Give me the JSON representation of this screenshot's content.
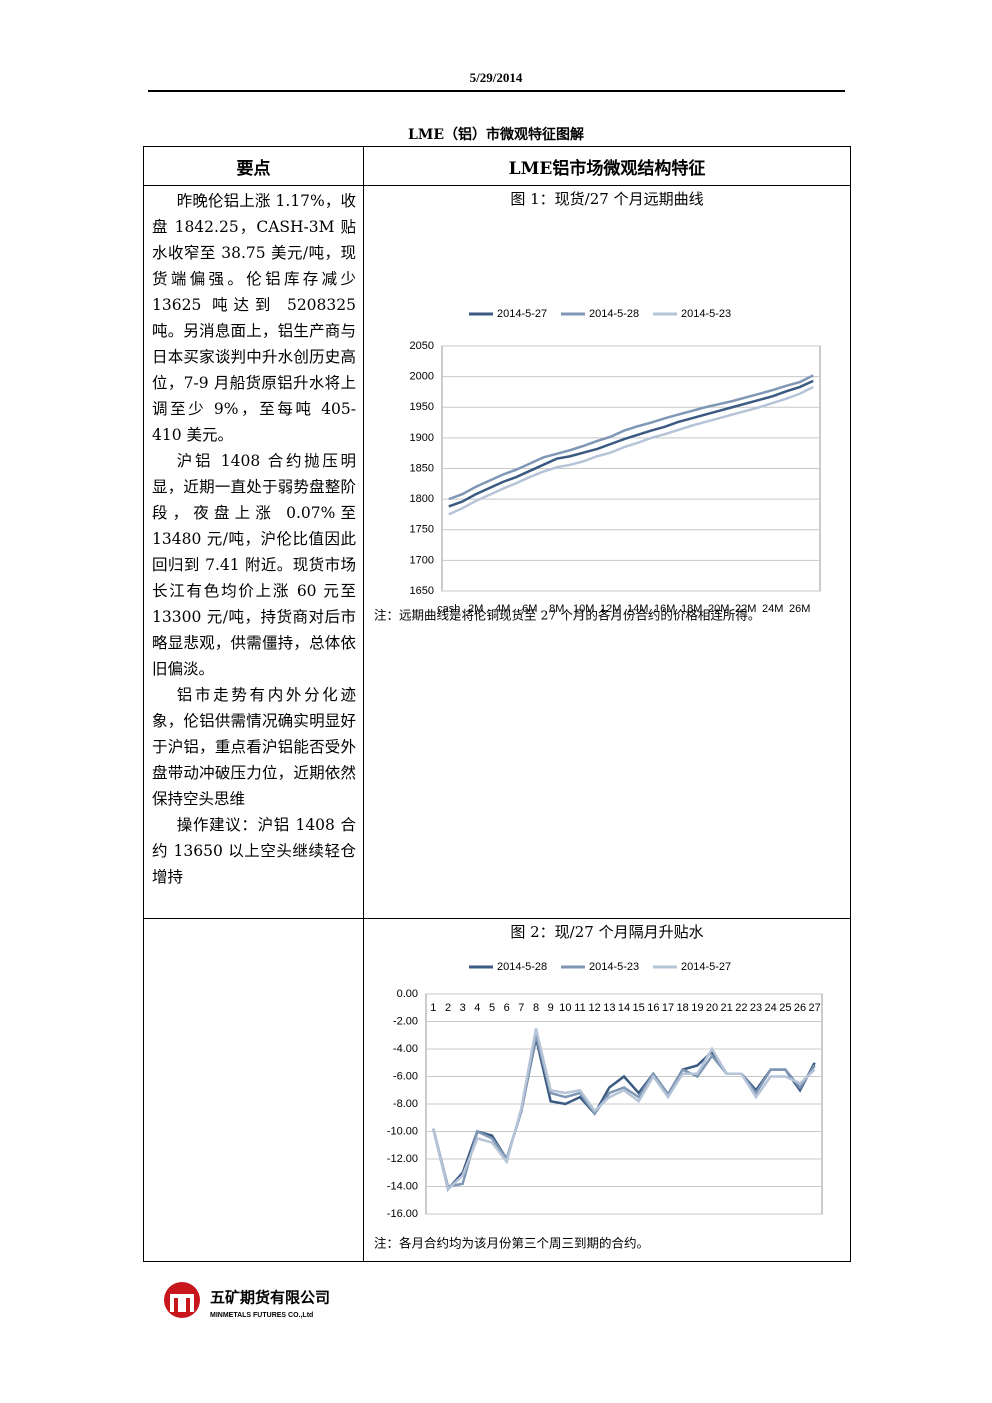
{
  "header": {
    "date": "5/29/2014"
  },
  "title": "LME（铝）市微观特征图解",
  "table": {
    "headers": [
      "要点",
      "LME铝市场微观结构特征"
    ],
    "paragraphs": [
      "昨晚伦铝上涨 1.17%，收盘 1842.25，CASH-3M 贴水收窄至 38.75 美元/吨，现货端偏强。伦铝库存减少 13625 吨达到 5208325 吨。另消息面上，铝生产商与日本买家谈判中升水创历史高位，7-9 月船货原铝升水将上调至少 9%，至每吨 405-410 美元。",
      "沪铝 1408 合约抛压明显，近期一直处于弱势盘整阶段，夜盘上涨 0.07%至 13480 元/吨，沪伦比值因此回归到 7.41 附近。现货市场长江有色均价上涨 60 元至 13300 元/吨，持货商对后市略显悲观，供需僵持，总体依旧偏淡。",
      "铝市走势有内外分化迹象，伦铝供需情况确实明显好于沪铝，重点看沪铝能否受外盘带动冲破压力位，近期依然保持空头思维",
      "操作建议：沪铝 1408 合约 13650 以上空头继续轻仓增持"
    ]
  },
  "chart_data": [
    {
      "type": "line",
      "title": "图 1：现货/27 个月远期曲线",
      "note": "注：远期曲线是将伦铜现货至 27 个月的各月份合约的价格相连所得。",
      "categories": [
        "cash",
        null,
        "2M",
        null,
        "4M",
        null,
        "6M",
        null,
        "8M",
        null,
        "10M",
        null,
        "12M",
        null,
        "14M",
        null,
        "16M",
        null,
        "18M",
        null,
        "20M",
        null,
        "22M",
        null,
        "24M",
        null,
        "26M",
        null
      ],
      "series": [
        {
          "name": "2014-5-27",
          "color": "#3b5a82",
          "values": [
            1788,
            1796,
            1808,
            1818,
            1828,
            1836,
            1846,
            1856,
            1866,
            1870,
            1876,
            1882,
            1890,
            1898,
            1905,
            1912,
            1918,
            1926,
            1932,
            1938,
            1944,
            1950,
            1956,
            1962,
            1968,
            1976,
            1983,
            1993
          ]
        },
        {
          "name": "2014-5-28",
          "color": "#7f97b5",
          "values": [
            1800,
            1808,
            1820,
            1830,
            1840,
            1848,
            1858,
            1868,
            1874,
            1880,
            1887,
            1895,
            1902,
            1912,
            1919,
            1925,
            1932,
            1938,
            1944,
            1950,
            1955,
            1960,
            1966,
            1972,
            1978,
            1985,
            1991,
            2002
          ]
        },
        {
          "name": "2014-5-23",
          "color": "#b6c4d8",
          "values": [
            1775,
            1785,
            1797,
            1807,
            1817,
            1826,
            1836,
            1845,
            1852,
            1856,
            1862,
            1870,
            1876,
            1885,
            1892,
            1900,
            1906,
            1913,
            1920,
            1926,
            1932,
            1938,
            1944,
            1950,
            1957,
            1964,
            1972,
            1983
          ]
        }
      ],
      "ylim": [
        1650,
        2050
      ],
      "yticks": [
        1650,
        1700,
        1750,
        1800,
        1850,
        1900,
        1950,
        2000,
        2050
      ],
      "grid": true
    },
    {
      "type": "line",
      "title": "图 2：现/27 个月隔月升贴水",
      "note": "注：各月合约均为该月份第三个周三到期的合约。",
      "categories": [
        "1",
        "2",
        "3",
        "4",
        "5",
        "6",
        "7",
        "8",
        "9",
        "10",
        "11",
        "12",
        "13",
        "14",
        "15",
        "16",
        "17",
        "18",
        "19",
        "20",
        "21",
        "22",
        "23",
        "24",
        "25",
        "26",
        "27"
      ],
      "series": [
        {
          "name": "2014-5-28",
          "color": "#3b5a82",
          "values": [
            -9.8,
            -14.2,
            -13.0,
            -10.0,
            -10.3,
            -12.0,
            -8.5,
            -3.2,
            -7.8,
            -8.0,
            -7.5,
            -8.7,
            -6.8,
            -6.0,
            -7.2,
            -5.8,
            -7.3,
            -5.5,
            -5.2,
            -4.2,
            -5.8,
            -5.8,
            -7.0,
            -5.5,
            -5.5,
            -7.0,
            -5.0
          ]
        },
        {
          "name": "2014-5-23",
          "color": "#7f97b5",
          "values": [
            -9.8,
            -14.0,
            -13.8,
            -10.0,
            -10.5,
            -12.0,
            -8.5,
            -3.0,
            -7.2,
            -7.5,
            -7.2,
            -8.7,
            -7.2,
            -6.8,
            -7.5,
            -5.8,
            -7.3,
            -5.5,
            -6.0,
            -4.5,
            -5.8,
            -5.8,
            -7.2,
            -5.5,
            -5.5,
            -6.8,
            -5.2
          ]
        },
        {
          "name": "2014-5-27",
          "color": "#b6c4d8",
          "values": [
            -9.8,
            -14.2,
            -13.2,
            -10.5,
            -10.8,
            -12.2,
            -8.3,
            -2.5,
            -7.0,
            -7.2,
            -7.0,
            -8.5,
            -7.5,
            -7.0,
            -7.8,
            -6.0,
            -7.5,
            -5.8,
            -5.8,
            -4.0,
            -5.8,
            -5.8,
            -7.5,
            -6.0,
            -6.0,
            -6.5,
            -5.5
          ]
        }
      ],
      "ylim": [
        -16,
        0
      ],
      "yticks": [
        {
          "value": -16,
          "label": "-16.00"
        },
        {
          "value": -14,
          "label": "-14.00"
        },
        {
          "value": -12,
          "label": "-12.00"
        },
        {
          "value": -10,
          "label": "-10.00"
        },
        {
          "value": -8,
          "label": "-8.00"
        },
        {
          "value": -6,
          "label": "-6.00"
        },
        {
          "value": -4,
          "label": "-4.00"
        },
        {
          "value": -2,
          "label": "-2.00"
        },
        {
          "value": 0,
          "label": "0.00"
        }
      ],
      "grid": true
    }
  ],
  "footer": {
    "company": "五矿期货有限公司",
    "company_en": "MINMETALS FUTURES CO.,Ltd"
  }
}
